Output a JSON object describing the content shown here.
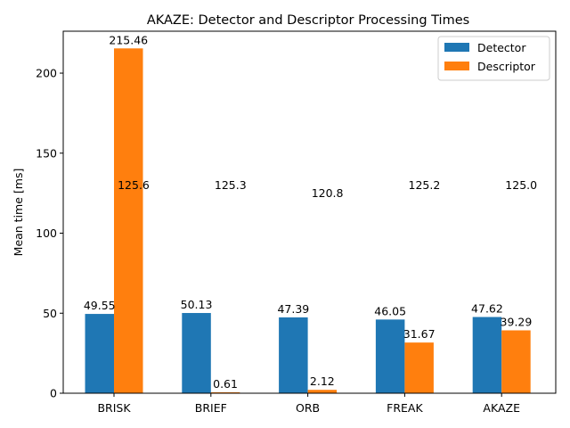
{
  "chart_data": {
    "type": "bar",
    "title": "AKAZE: Detector and Descriptor Processing Times",
    "xlabel": "",
    "ylabel": "Mean time [ms]",
    "categories": [
      "BRISK",
      "BRIEF",
      "ORB",
      "FREAK",
      "AKAZE"
    ],
    "series": [
      {
        "name": "Detector",
        "color": "#1f77b4",
        "values": [
          49.55,
          50.13,
          47.39,
          46.05,
          47.62
        ],
        "labels": [
          "49.55",
          "50.13",
          "47.39",
          "46.05",
          "47.62"
        ]
      },
      {
        "name": "Descriptor",
        "color": "#ff7f0e",
        "values": [
          215.46,
          0.61,
          2.12,
          31.67,
          39.29
        ],
        "labels": [
          "215.46",
          "0.61",
          "2.12",
          "31.67",
          "39.29"
        ]
      }
    ],
    "annotations": [
      {
        "category": "BRISK",
        "text": "125.6",
        "y": 130
      },
      {
        "category": "BRIEF",
        "text": "125.3",
        "y": 130
      },
      {
        "category": "ORB",
        "text": "120.8",
        "y": 125
      },
      {
        "category": "FREAK",
        "text": "125.2",
        "y": 130
      },
      {
        "category": "AKAZE",
        "text": "125.0",
        "y": 130
      }
    ],
    "ylim": [
      0,
      226.2
    ],
    "yticks": [
      0,
      50,
      100,
      150,
      200
    ],
    "legend_position": "top-right",
    "grid": false
  }
}
